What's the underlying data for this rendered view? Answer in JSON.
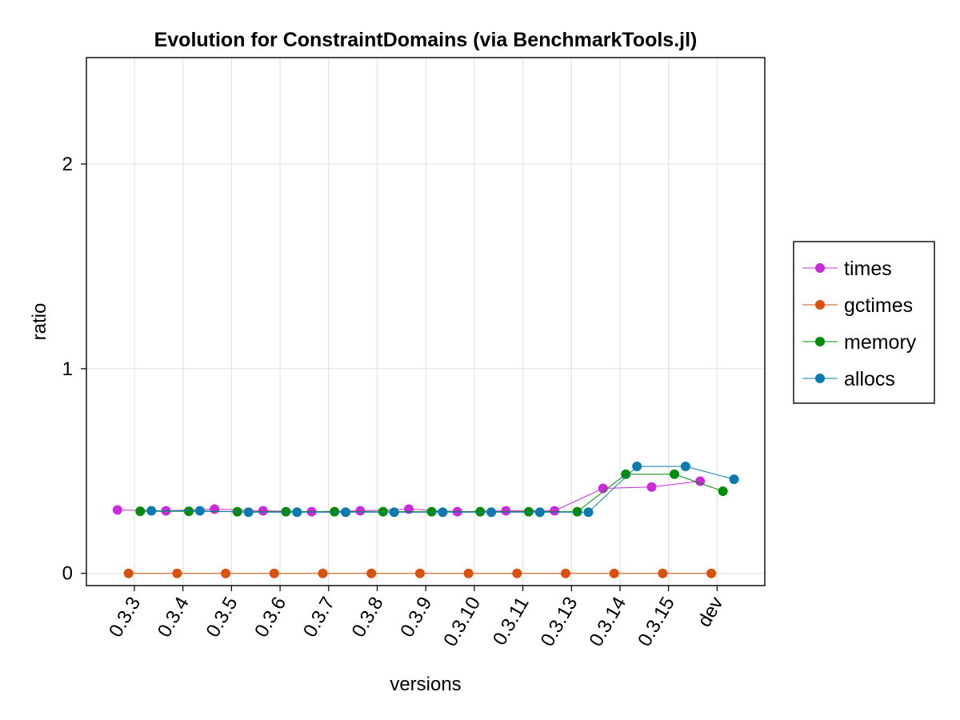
{
  "chart_data": {
    "type": "line",
    "title": "Evolution for ConstraintDomains (via BenchmarkTools.jl)",
    "xlabel": "versions",
    "ylabel": "ratio",
    "categories": [
      "0.3.3",
      "0.3.4",
      "0.3.5",
      "0.3.6",
      "0.3.7",
      "0.3.8",
      "0.3.9",
      "0.3.10",
      "0.3.11",
      "0.3.13",
      "0.3.14",
      "0.3.15",
      "dev"
    ],
    "y_scale": "log10(1+ratio)",
    "y_ticks": [
      0,
      1,
      2
    ],
    "ylim": [
      -0.06,
      2.52
    ],
    "grid": true,
    "legend_position": "right",
    "series": [
      {
        "name": "times",
        "color": "#cb2bdb",
        "offset": -0.35,
        "values": [
          1.04,
          1.02,
          1.06,
          1.02,
          1.0,
          1.02,
          1.06,
          1.0,
          1.02,
          1.02,
          1.6,
          1.64,
          1.82
        ]
      },
      {
        "name": "gctimes",
        "color": "#d8510d",
        "offset": -0.12,
        "values": [
          0,
          0,
          0,
          0,
          0,
          0,
          0,
          0,
          0,
          0,
          0,
          0,
          0
        ]
      },
      {
        "name": "memory",
        "color": "#028c09",
        "offset": 0.12,
        "values": [
          1.01,
          1.01,
          1.0,
          1.0,
          1.0,
          1.0,
          1.0,
          1.0,
          1.0,
          1.0,
          2.05,
          2.05,
          1.52
        ]
      },
      {
        "name": "allocs",
        "color": "#0a7ab0",
        "offset": 0.35,
        "values": [
          1.02,
          1.02,
          0.99,
          0.99,
          0.99,
          0.99,
          0.99,
          0.99,
          0.99,
          0.99,
          2.33,
          2.33,
          1.88
        ]
      }
    ]
  }
}
